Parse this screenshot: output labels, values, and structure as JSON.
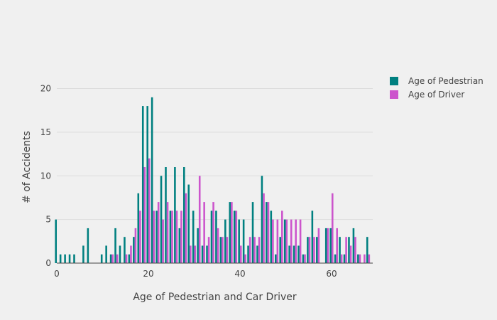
{
  "chart_data": {
    "type": "bar",
    "xlabel": "Age of Pedestrian and Car Driver",
    "ylabel": "# of Accidents",
    "xlim": [
      0,
      69
    ],
    "ylim": [
      0,
      22
    ],
    "xticks": [
      0,
      20,
      40,
      60
    ],
    "yticks": [
      0,
      5,
      10,
      15,
      20
    ],
    "grid": "horizontal",
    "legend": "right",
    "bar_mode": "grouped",
    "series": [
      {
        "name": "Age of Pedestrian",
        "color": "#008080",
        "points": [
          [
            0,
            5
          ],
          [
            1,
            1
          ],
          [
            2,
            1
          ],
          [
            3,
            1
          ],
          [
            4,
            1
          ],
          [
            6,
            2
          ],
          [
            7,
            4
          ],
          [
            10,
            1
          ],
          [
            11,
            2
          ],
          [
            12,
            1
          ],
          [
            13,
            4
          ],
          [
            14,
            2
          ],
          [
            15,
            3
          ],
          [
            16,
            1
          ],
          [
            17,
            3
          ],
          [
            18,
            8
          ],
          [
            19,
            18
          ],
          [
            20,
            18
          ],
          [
            21,
            19
          ],
          [
            22,
            6
          ],
          [
            23,
            10
          ],
          [
            24,
            11
          ],
          [
            25,
            6
          ],
          [
            26,
            11
          ],
          [
            27,
            4
          ],
          [
            28,
            11
          ],
          [
            29,
            9
          ],
          [
            30,
            6
          ],
          [
            31,
            4
          ],
          [
            32,
            2
          ],
          [
            33,
            2
          ],
          [
            34,
            6
          ],
          [
            35,
            6
          ],
          [
            36,
            3
          ],
          [
            37,
            5
          ],
          [
            38,
            7
          ],
          [
            39,
            6
          ],
          [
            40,
            5
          ],
          [
            41,
            5
          ],
          [
            42,
            2
          ],
          [
            43,
            7
          ],
          [
            44,
            2
          ],
          [
            45,
            10
          ],
          [
            46,
            7
          ],
          [
            47,
            6
          ],
          [
            48,
            1
          ],
          [
            49,
            3
          ],
          [
            50,
            5
          ],
          [
            51,
            2
          ],
          [
            52,
            2
          ],
          [
            53,
            2
          ],
          [
            54,
            1
          ],
          [
            55,
            3
          ],
          [
            56,
            6
          ],
          [
            57,
            3
          ],
          [
            59,
            4
          ],
          [
            60,
            4
          ],
          [
            61,
            1
          ],
          [
            62,
            3
          ],
          [
            63,
            1
          ],
          [
            64,
            3
          ],
          [
            65,
            4
          ],
          [
            66,
            1
          ],
          [
            68,
            3
          ]
        ]
      },
      {
        "name": "Age of Driver",
        "color": "#cc55cc",
        "points": [
          [
            12,
            1
          ],
          [
            13,
            1
          ],
          [
            15,
            1
          ],
          [
            16,
            2
          ],
          [
            17,
            4
          ],
          [
            18,
            6
          ],
          [
            19,
            11
          ],
          [
            20,
            12
          ],
          [
            21,
            6
          ],
          [
            22,
            7
          ],
          [
            23,
            5
          ],
          [
            24,
            7
          ],
          [
            25,
            6
          ],
          [
            26,
            6
          ],
          [
            27,
            6
          ],
          [
            28,
            8
          ],
          [
            29,
            2
          ],
          [
            30,
            2
          ],
          [
            31,
            10
          ],
          [
            32,
            7
          ],
          [
            33,
            3
          ],
          [
            34,
            7
          ],
          [
            35,
            4
          ],
          [
            36,
            3
          ],
          [
            37,
            3
          ],
          [
            38,
            7
          ],
          [
            39,
            6
          ],
          [
            40,
            2
          ],
          [
            41,
            1
          ],
          [
            42,
            3
          ],
          [
            43,
            3
          ],
          [
            44,
            3
          ],
          [
            45,
            8
          ],
          [
            46,
            7
          ],
          [
            47,
            5
          ],
          [
            48,
            5
          ],
          [
            49,
            6
          ],
          [
            50,
            5
          ],
          [
            51,
            5
          ],
          [
            52,
            5
          ],
          [
            53,
            5
          ],
          [
            54,
            1
          ],
          [
            55,
            3
          ],
          [
            56,
            3
          ],
          [
            57,
            4
          ],
          [
            59,
            4
          ],
          [
            60,
            8
          ],
          [
            61,
            4
          ],
          [
            62,
            1
          ],
          [
            63,
            3
          ],
          [
            64,
            2
          ],
          [
            65,
            3
          ],
          [
            66,
            1
          ],
          [
            67,
            1
          ],
          [
            68,
            1
          ]
        ]
      }
    ]
  }
}
